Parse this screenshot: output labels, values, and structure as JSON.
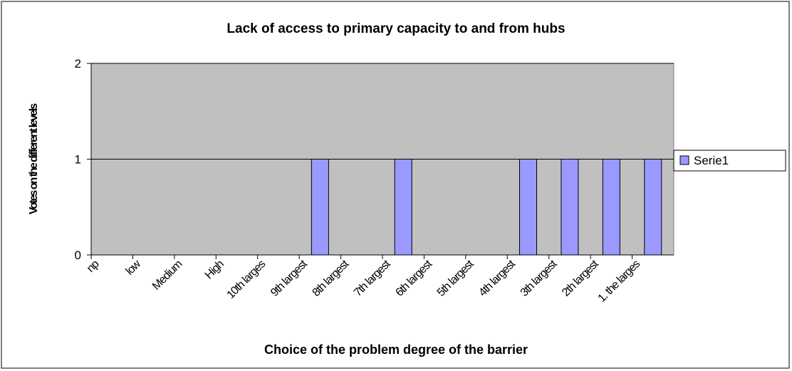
{
  "chart_data": {
    "type": "bar",
    "title": "Lack of access to primary capacity to and from hubs",
    "x_label": "Choice of the problem degree of the barrier",
    "y_label": "Votes on the different levels",
    "categories": [
      "np",
      "low",
      "Medium",
      "High",
      "10th larges",
      "9th largest",
      "8th largest",
      "7th largest",
      "6th largest",
      "5th largest",
      "4th largest",
      "3th largest",
      "2th largest",
      "1. the larges"
    ],
    "series": [
      {
        "name": "Serie1",
        "color": "#9999ff",
        "values": [
          0,
          0,
          0,
          0,
          0,
          1,
          0,
          1,
          0,
          0,
          1,
          1,
          1,
          1
        ]
      }
    ],
    "ylim": [
      0,
      2
    ],
    "yticks": [
      0,
      1,
      2
    ],
    "grid": true,
    "legend": "right"
  }
}
